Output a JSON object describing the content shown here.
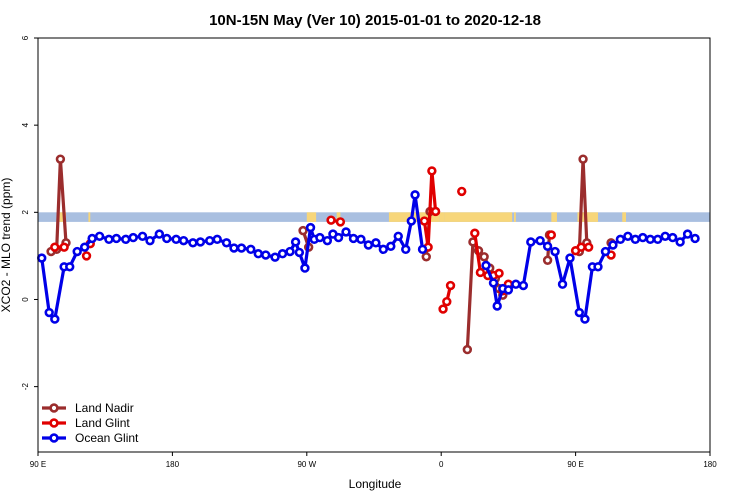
{
  "chart_data": {
    "type": "line",
    "title": "10N-15N May (Ver 10)   2015-01-01 to 2020-12-18",
    "xlabel": "Longitude",
    "ylabel": "XCO2 - MLO trend (ppm)",
    "xlim": [
      -90,
      270
    ],
    "ylim": [
      -3.5,
      6
    ],
    "x_ticks": [
      {
        "value": -90,
        "label": "90 E"
      },
      {
        "value": -18,
        "label": "180"
      },
      {
        "value": 54,
        "label": "90 W"
      },
      {
        "value": 126,
        "label": "0"
      },
      {
        "value": 198,
        "label": "90 E"
      },
      {
        "value": 270,
        "label": "180"
      }
    ],
    "y_ticks": [
      {
        "value": -2,
        "label": "-2"
      },
      {
        "value": 0,
        "label": "0"
      },
      {
        "value": 2,
        "label": "2"
      },
      {
        "value": 4,
        "label": "4"
      },
      {
        "value": 6,
        "label": "6"
      }
    ],
    "legend_position": "bottom-left",
    "land_mask_band": {
      "y_range": [
        1.78,
        2.0
      ],
      "ocean_color": "#a9bfe0",
      "land_color": "#f7d67a",
      "land_segments": [
        [
          -79,
          -75
        ],
        [
          -63,
          -62
        ],
        [
          54,
          59
        ],
        [
          70,
          72
        ],
        [
          98,
          125
        ],
        [
          125,
          128
        ],
        [
          128,
          164
        ],
        [
          165,
          166
        ],
        [
          185,
          188
        ],
        [
          199,
          210
        ],
        [
          223,
          225
        ]
      ]
    },
    "series": [
      {
        "name": "Land Nadir",
        "color": "#9b2d2d",
        "segments": [
          [
            [
              -83,
              1.1
            ],
            [
              -80,
              1.15
            ],
            [
              -78,
              3.22
            ],
            [
              -75,
              1.3
            ]
          ],
          [
            [
              52,
              1.58
            ],
            [
              55,
              1.2
            ]
          ],
          [
            [
              118,
              0.98
            ],
            [
              120,
              2.02
            ]
          ],
          [
            [
              140,
              -1.15
            ],
            [
              143,
              1.32
            ],
            [
              146,
              1.12
            ],
            [
              149,
              0.98
            ],
            [
              152,
              0.72
            ],
            [
              155,
              0.48
            ],
            [
              157,
              0.25
            ],
            [
              159,
              0.1
            ]
          ],
          [
            [
              183,
              0.9
            ],
            [
              184,
              1.48
            ]
          ],
          [
            [
              200,
              1.1
            ],
            [
              202,
              3.22
            ],
            [
              204,
              1.3
            ]
          ],
          [
            [
              217,
              1.3
            ]
          ]
        ]
      },
      {
        "name": "Land Glint",
        "color": "#e00000",
        "segments": [
          [
            [
              -81,
              1.2
            ],
            [
              -76,
              1.2
            ]
          ],
          [
            [
              -64,
              1.0
            ]
          ],
          [
            [
              -62,
              1.28
            ]
          ],
          [
            [
              67,
              1.82
            ],
            [
              72,
              1.78
            ]
          ],
          [
            [
              117,
              1.8
            ],
            [
              119,
              1.2
            ],
            [
              121,
              2.95
            ],
            [
              123,
              2.02
            ]
          ],
          [
            [
              127,
              -0.22
            ],
            [
              129,
              -0.05
            ],
            [
              131,
              0.32
            ]
          ],
          [
            [
              137,
              2.48
            ]
          ],
          [
            [
              144,
              1.52
            ],
            [
              147,
              0.62
            ],
            [
              151,
              0.55
            ],
            [
              154,
              0.55
            ],
            [
              157,
              0.6
            ]
          ],
          [
            [
              159,
              0.2
            ],
            [
              162,
              0.35
            ]
          ],
          [
            [
              185,
              1.48
            ]
          ],
          [
            [
              198,
              1.12
            ],
            [
              201,
              1.2
            ],
            [
              205,
              1.2
            ]
          ],
          [
            [
              217,
              1.02
            ]
          ]
        ]
      },
      {
        "name": "Ocean Glint",
        "color": "#0000e8",
        "segments": [
          [
            [
              -88,
              0.95
            ],
            [
              -84,
              -0.3
            ],
            [
              -81,
              -0.45
            ],
            [
              -76,
              0.75
            ],
            [
              -73,
              0.75
            ],
            [
              -69,
              1.1
            ],
            [
              -65,
              1.2
            ],
            [
              -61,
              1.4
            ],
            [
              -57,
              1.45
            ],
            [
              -52,
              1.38
            ],
            [
              -48,
              1.4
            ],
            [
              -43,
              1.38
            ],
            [
              -39,
              1.42
            ],
            [
              -34,
              1.45
            ],
            [
              -30,
              1.35
            ],
            [
              -25,
              1.5
            ],
            [
              -21,
              1.4
            ],
            [
              -16,
              1.38
            ],
            [
              -12,
              1.35
            ],
            [
              -7,
              1.3
            ],
            [
              -3,
              1.32
            ],
            [
              2,
              1.35
            ],
            [
              6,
              1.38
            ],
            [
              11,
              1.3
            ],
            [
              15,
              1.18
            ],
            [
              19,
              1.18
            ],
            [
              24,
              1.15
            ],
            [
              28,
              1.05
            ],
            [
              32,
              1.02
            ],
            [
              37,
              0.97
            ],
            [
              41,
              1.05
            ],
            [
              45,
              1.1
            ],
            [
              48,
              1.32
            ],
            [
              50,
              1.08
            ],
            [
              53,
              0.72
            ],
            [
              56,
              1.65
            ],
            [
              58,
              1.38
            ],
            [
              61,
              1.42
            ],
            [
              65,
              1.35
            ],
            [
              68,
              1.5
            ],
            [
              71,
              1.42
            ],
            [
              75,
              1.55
            ],
            [
              79,
              1.4
            ],
            [
              83,
              1.38
            ],
            [
              87,
              1.25
            ],
            [
              91,
              1.3
            ],
            [
              95,
              1.15
            ],
            [
              99,
              1.22
            ],
            [
              103,
              1.45
            ],
            [
              107,
              1.15
            ],
            [
              110,
              1.8
            ],
            [
              112,
              2.4
            ],
            [
              116,
              1.15
            ]
          ],
          [
            [
              150,
              0.78
            ],
            [
              154,
              0.38
            ],
            [
              156,
              -0.15
            ],
            [
              159,
              0.25
            ],
            [
              162,
              0.22
            ],
            [
              166,
              0.35
            ],
            [
              170,
              0.32
            ],
            [
              174,
              1.32
            ],
            [
              179,
              1.35
            ],
            [
              183,
              1.22
            ],
            [
              187,
              1.1
            ],
            [
              191,
              0.35
            ],
            [
              195,
              0.95
            ],
            [
              200,
              -0.3
            ],
            [
              203,
              -0.45
            ],
            [
              207,
              0.75
            ],
            [
              210,
              0.75
            ],
            [
              214,
              1.1
            ],
            [
              218,
              1.25
            ],
            [
              222,
              1.38
            ],
            [
              226,
              1.45
            ],
            [
              230,
              1.38
            ],
            [
              234,
              1.42
            ],
            [
              238,
              1.38
            ],
            [
              242,
              1.38
            ],
            [
              246,
              1.45
            ],
            [
              250,
              1.42
            ],
            [
              254,
              1.32
            ],
            [
              258,
              1.5
            ],
            [
              262,
              1.4
            ]
          ]
        ]
      }
    ]
  }
}
